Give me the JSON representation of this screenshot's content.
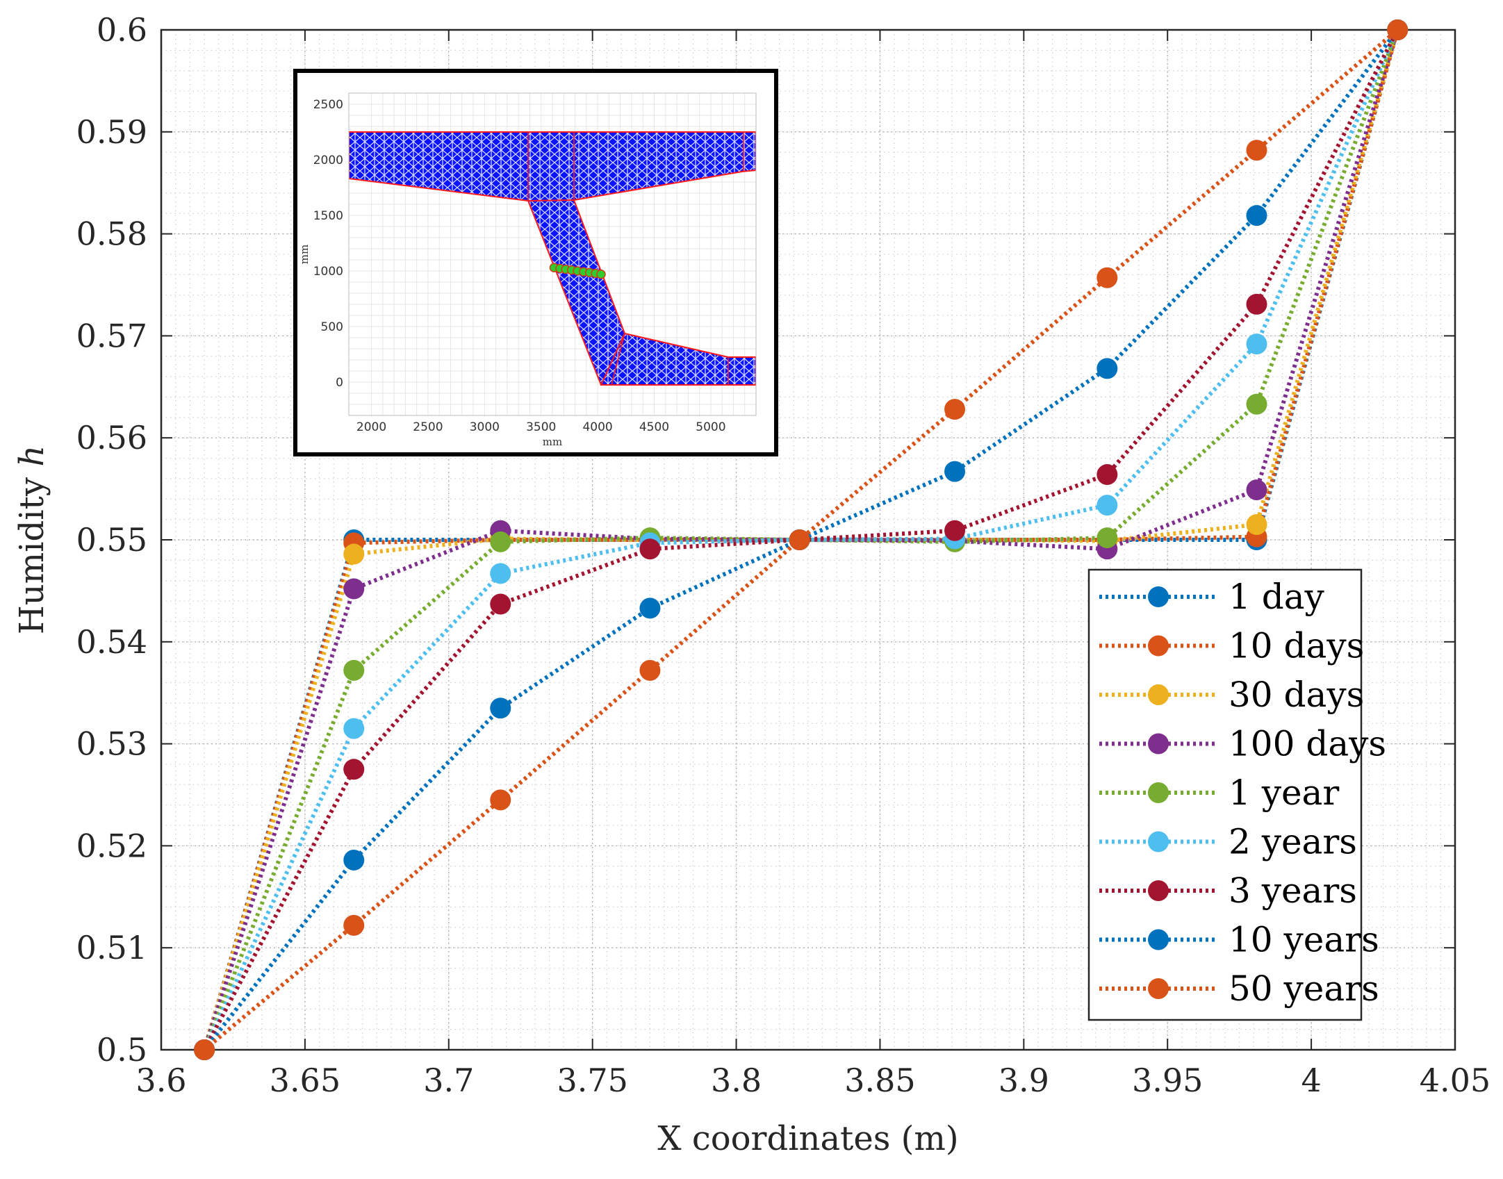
{
  "chart_data": {
    "type": "line",
    "title": "",
    "xlabel": "X coordinates (m)",
    "ylabel_text": "Humidity",
    "ylabel_symbol": "h",
    "xlim": [
      3.6,
      4.05
    ],
    "ylim": [
      0.5,
      0.6
    ],
    "xticks": [
      3.6,
      3.65,
      3.7,
      3.75,
      3.8,
      3.85,
      3.9,
      3.95,
      4,
      4.05
    ],
    "xtick_labels": [
      "3.6",
      "3.65",
      "3.7",
      "3.75",
      "3.8",
      "3.85",
      "3.9",
      "3.95",
      "4",
      "4.05"
    ],
    "yticks": [
      0.5,
      0.51,
      0.52,
      0.53,
      0.54,
      0.55,
      0.56,
      0.57,
      0.58,
      0.59,
      0.6
    ],
    "ytick_labels": [
      "0.5",
      "0.51",
      "0.52",
      "0.53",
      "0.54",
      "0.55",
      "0.56",
      "0.57",
      "0.58",
      "0.59",
      "0.6"
    ],
    "grid": "on (major and minor, dotted)",
    "legend_position": "bottom-right",
    "x": [
      3.615,
      3.667,
      3.718,
      3.77,
      3.822,
      3.876,
      3.929,
      3.981,
      4.03
    ],
    "series": [
      {
        "name": "1 day",
        "color": "#0072BD",
        "values": [
          0.5,
          0.55,
          0.55,
          0.55,
          0.55,
          0.55,
          0.55,
          0.55,
          0.6
        ]
      },
      {
        "name": "10 days",
        "color": "#D95319",
        "values": [
          0.5,
          0.5497,
          0.55,
          0.55,
          0.55,
          0.55,
          0.55,
          0.5503,
          0.6
        ]
      },
      {
        "name": "30 days",
        "color": "#EDB120",
        "values": [
          0.5,
          0.5486,
          0.5501,
          0.55,
          0.55,
          0.55,
          0.5499,
          0.5515,
          0.6
        ]
      },
      {
        "name": "100 days",
        "color": "#7E2F8E",
        "values": [
          0.5,
          0.5452,
          0.5509,
          0.5501,
          0.55,
          0.5499,
          0.5491,
          0.5549,
          0.6
        ]
      },
      {
        "name": "1 year",
        "color": "#77AC30",
        "values": [
          0.5,
          0.5372,
          0.5498,
          0.5502,
          0.55,
          0.5498,
          0.5502,
          0.5633,
          0.6
        ]
      },
      {
        "name": "2 years",
        "color": "#4DBEEE",
        "values": [
          0.5,
          0.5315,
          0.5467,
          0.5497,
          0.55,
          0.5501,
          0.5534,
          0.5692,
          0.6
        ]
      },
      {
        "name": "3 years",
        "color": "#A2142F",
        "values": [
          0.5,
          0.5275,
          0.5437,
          0.5491,
          0.55,
          0.5509,
          0.5564,
          0.5731,
          0.6
        ]
      },
      {
        "name": "10 years",
        "color": "#0072BD",
        "values": [
          0.5,
          0.5186,
          0.5335,
          0.5433,
          0.55,
          0.5567,
          0.5668,
          0.5818,
          0.6
        ]
      },
      {
        "name": "50 years",
        "color": "#D95319",
        "values": [
          0.5,
          0.5122,
          0.5245,
          0.5372,
          0.55,
          0.5628,
          0.5757,
          0.5882,
          0.6
        ]
      }
    ],
    "inset": {
      "description_type": "finite element mesh",
      "xlabel": "mm",
      "ylabel": "mm",
      "xlim": [
        1800,
        5400
      ],
      "ylim": [
        -300,
        2600
      ],
      "xticks": [
        2000,
        2500,
        3000,
        3500,
        4000,
        4500,
        5000
      ],
      "xtick_labels": [
        "2000",
        "2500",
        "3000",
        "3500",
        "4000",
        "4500",
        "5000"
      ],
      "yticks": [
        0,
        500,
        1000,
        1500,
        2000,
        2500
      ],
      "ytick_labels": [
        "0",
        "500",
        "1000",
        "1500",
        "2000",
        "2500"
      ],
      "mesh_fill_color": "#0000FF",
      "boundary_color": "#FF0000",
      "marker_color": "#2ECC2E",
      "markers_x": [
        3615,
        3667,
        3718,
        3770,
        3822,
        3876,
        3929,
        3981,
        4030
      ],
      "markers_y": [
        1030,
        1022,
        1015,
        1008,
        1000,
        992,
        985,
        978,
        970
      ]
    }
  }
}
